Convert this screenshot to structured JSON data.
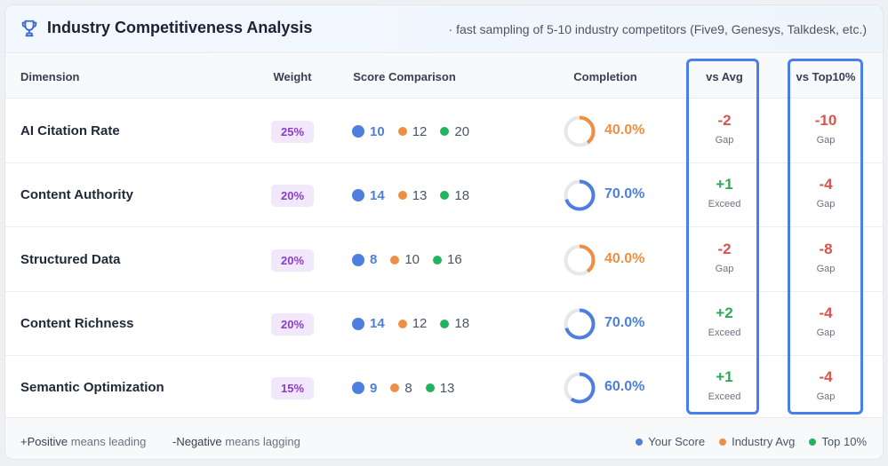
{
  "header": {
    "title": "Industry Competitiveness Analysis",
    "subtitle": "· fast sampling of 5-10 industry competitors (Five9, Genesys, Talkdesk, etc.)"
  },
  "columns": {
    "dimension": "Dimension",
    "weight": "Weight",
    "score": "Score Comparison",
    "completion": "Completion",
    "vs_avg": "vs Avg",
    "vs_top": "vs Top10%"
  },
  "rows": [
    {
      "dimension": "AI Citation Rate",
      "weight": "25%",
      "you": "10",
      "avg": "12",
      "top": "20",
      "completion": "40.0%",
      "completion_value": 0.4,
      "completion_color": "#ee8f45",
      "vs_avg": "-2",
      "vs_avg_label": "Gap",
      "vs_top": "-10",
      "vs_top_label": "Gap"
    },
    {
      "dimension": "Content Authority",
      "weight": "20%",
      "you": "14",
      "avg": "13",
      "top": "18",
      "completion": "70.0%",
      "completion_value": 0.7,
      "completion_color": "#4f7fde",
      "vs_avg": "+1",
      "vs_avg_label": "Exceed",
      "vs_top": "-4",
      "vs_top_label": "Gap"
    },
    {
      "dimension": "Structured Data",
      "weight": "20%",
      "you": "8",
      "avg": "10",
      "top": "16",
      "completion": "40.0%",
      "completion_value": 0.4,
      "completion_color": "#ee8f45",
      "vs_avg": "-2",
      "vs_avg_label": "Gap",
      "vs_top": "-8",
      "vs_top_label": "Gap"
    },
    {
      "dimension": "Content Richness",
      "weight": "20%",
      "you": "14",
      "avg": "12",
      "top": "18",
      "completion": "70.0%",
      "completion_value": 0.7,
      "completion_color": "#4f7fde",
      "vs_avg": "+2",
      "vs_avg_label": "Exceed",
      "vs_top": "-4",
      "vs_top_label": "Gap"
    },
    {
      "dimension": "Semantic Optimization",
      "weight": "15%",
      "you": "9",
      "avg": "8",
      "top": "13",
      "completion": "60.0%",
      "completion_value": 0.6,
      "completion_color": "#4f7fde",
      "vs_avg": "+1",
      "vs_avg_label": "Exceed",
      "vs_top": "-4",
      "vs_top_label": "Gap"
    }
  ],
  "footer": {
    "positive_sign": "+Positive",
    "positive_text": "means leading",
    "negative_sign": "-Negative",
    "negative_text": "means lagging",
    "legend": [
      {
        "label": "Your Score",
        "color": "#4f7fde"
      },
      {
        "label": "Industry Avg",
        "color": "#ee8f45"
      },
      {
        "label": "Top 10%",
        "color": "#22b35e"
      }
    ]
  },
  "icons": {
    "title_icon": "trophy-icon"
  },
  "colors": {
    "accent": "#4a7ee8",
    "negative": "#d9534f",
    "positive": "#2fa85a",
    "weight_badge": "#8a3cc7"
  }
}
